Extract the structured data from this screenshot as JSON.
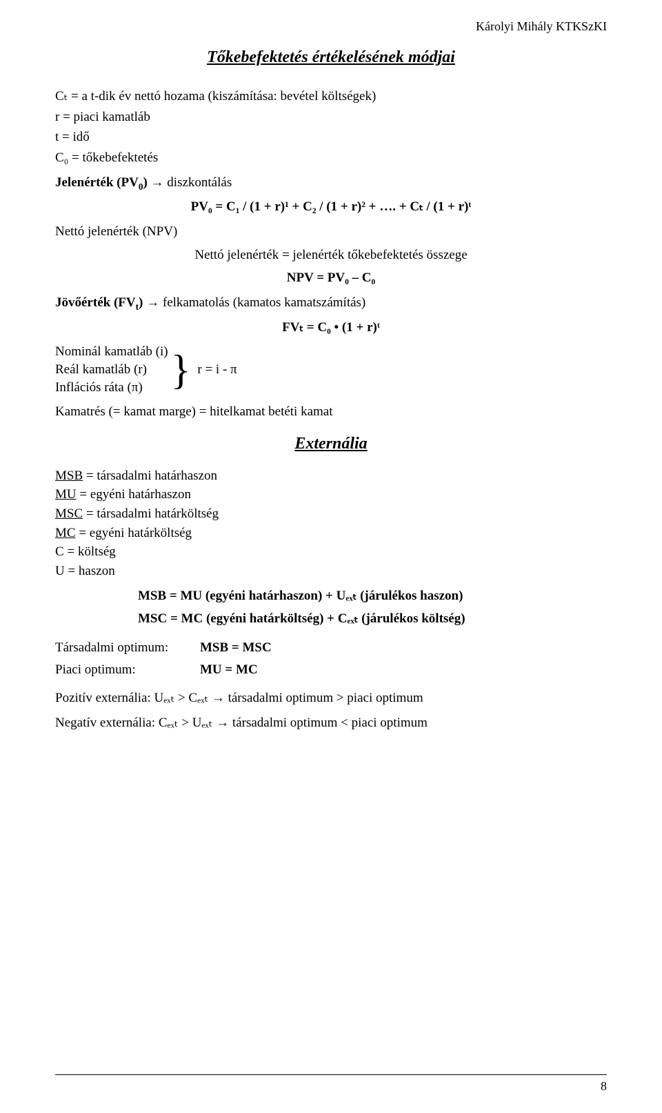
{
  "header": {
    "institution": "Károlyi Mihály KTKSzKI"
  },
  "section1": {
    "title": "Tőkebefektetés értékelésének módjai",
    "defs": {
      "ct": "Cₜ = a t-dik év nettó hozama (kiszámítása: bevétel költségek)",
      "r": "r = piaci kamatláb",
      "t": "t = idő",
      "c0": "C₀ = tőkebefektetés"
    },
    "pv": {
      "label_pre": "Jelenérték (PV",
      "label_sub": "0",
      "label_post": ")",
      "arrow": " → diszkontálás",
      "formula": "PV₀ = C₁ / (1 + r)¹ + C₂ / (1 + r)² + …. + Cₜ / (1 + r)ᵗ"
    },
    "npv": {
      "label": "Nettó jelenérték (NPV)",
      "desc": "Nettó jelenérték = jelenérték tőkebefektetés összege",
      "formula": "NPV = PV₀ – C₀"
    },
    "fv": {
      "label_pre": "Jövőérték (FV",
      "label_sub": "t",
      "label_post": ")",
      "arrow": " → felkamatolás (kamatos kamatszámítás)",
      "formula": "FVₜ =  C₀ • (1 + r)ᵗ"
    },
    "brace": {
      "l1": "Nominál kamatláb (i)",
      "l2": "Reál kamatláb (r)",
      "l3": "Inflációs ráta (π)",
      "rhs": "r = i - π"
    },
    "kamatres": "Kamatrés (= kamat marge) = hitelkamat betéti kamat"
  },
  "section2": {
    "title": "Externália",
    "defs": {
      "msb": "MSB",
      "msb_rest": " = társadalmi határhaszon",
      "mu": "MU",
      "mu_rest": " = egyéni határhaszon",
      "msc": "MSC",
      "msc_rest": " = társadalmi határköltség",
      "mc": "MC",
      "mc_rest": " = egyéni határköltség",
      "c": "C = költség",
      "u": "U = haszon"
    },
    "eq_msb": "MSB = MU (egyéni határhaszon) + Uₑₓₜ (járulékos haszon)",
    "eq_msc": "MSC = MC (egyéni határköltség) + Cₑₓₜ (járulékos költség)",
    "opt_tarsadalmi": {
      "label": "Társadalmi optimum:",
      "value": "MSB = MSC"
    },
    "opt_piaci": {
      "label": "Piaci optimum:",
      "value": "MU = MC"
    },
    "pos": "Pozitív externália: Uₑₓₜ > Cₑₓₜ → társadalmi optimum > piaci optimum",
    "neg": "Negatív externália: Cₑₓₜ > Uₑₓₜ → társadalmi optimum < piaci optimum"
  },
  "footer": {
    "page_number": "8"
  }
}
